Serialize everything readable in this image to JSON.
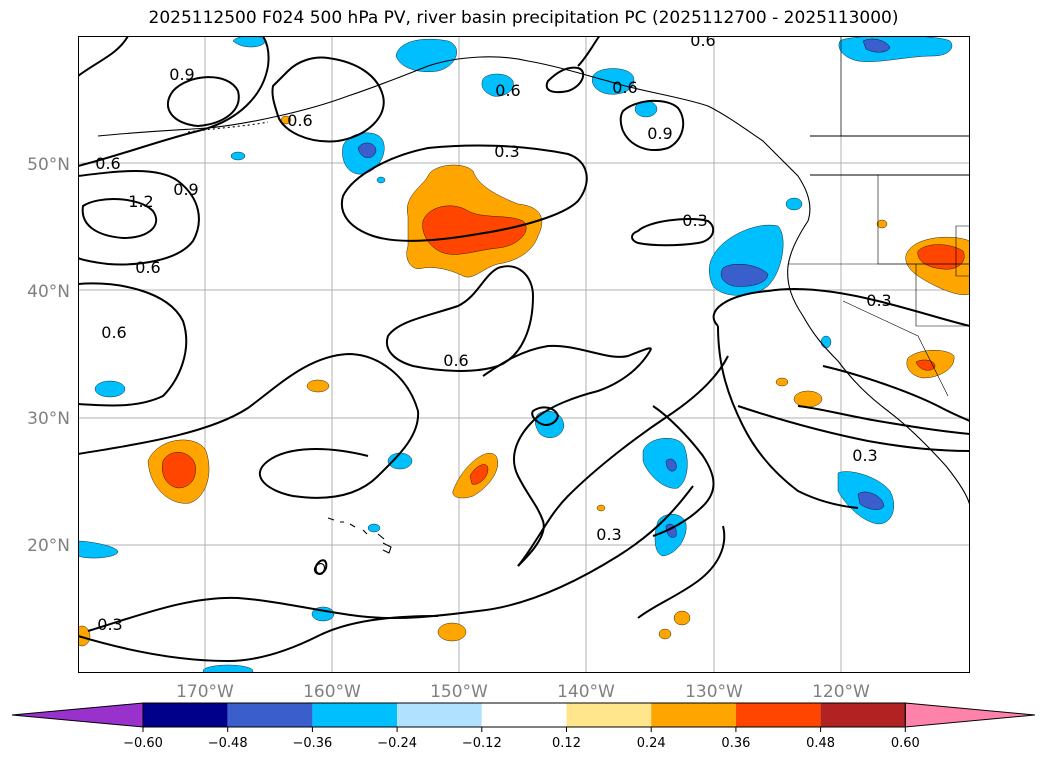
{
  "title": "2025112500 F024 500 hPa PV, river basin precipitation PC (2025112700 - 2025113000)",
  "map": {
    "lon_ticks": [
      "170°W",
      "160°W",
      "150°W",
      "140°W",
      "130°W",
      "120°W"
    ],
    "lat_ticks": [
      "50°N",
      "40°N",
      "30°N",
      "20°N"
    ],
    "contour_labels": [
      "0.6",
      "0.6",
      "0.9",
      "0.6",
      "1.2",
      "0.9",
      "0.6",
      "0.6",
      "0.3",
      "0.3",
      "0.6",
      "0.3",
      "0.3",
      "0.3",
      "0.3",
      "0.6",
      "0.6",
      "0.9"
    ]
  },
  "colorbar": {
    "ticks": [
      "−0.60",
      "−0.48",
      "−0.36",
      "−0.24",
      "−0.12",
      "0.12",
      "0.24",
      "0.36",
      "0.48",
      "0.60"
    ],
    "colors": [
      "#9932CC",
      "#00008B",
      "#3A5FCD",
      "#00BFFF",
      "#B0E2FF",
      "#FFFFFF",
      "#FFE68C",
      "#FFA500",
      "#FF4500",
      "#B22222",
      "#FF82AB"
    ]
  }
}
